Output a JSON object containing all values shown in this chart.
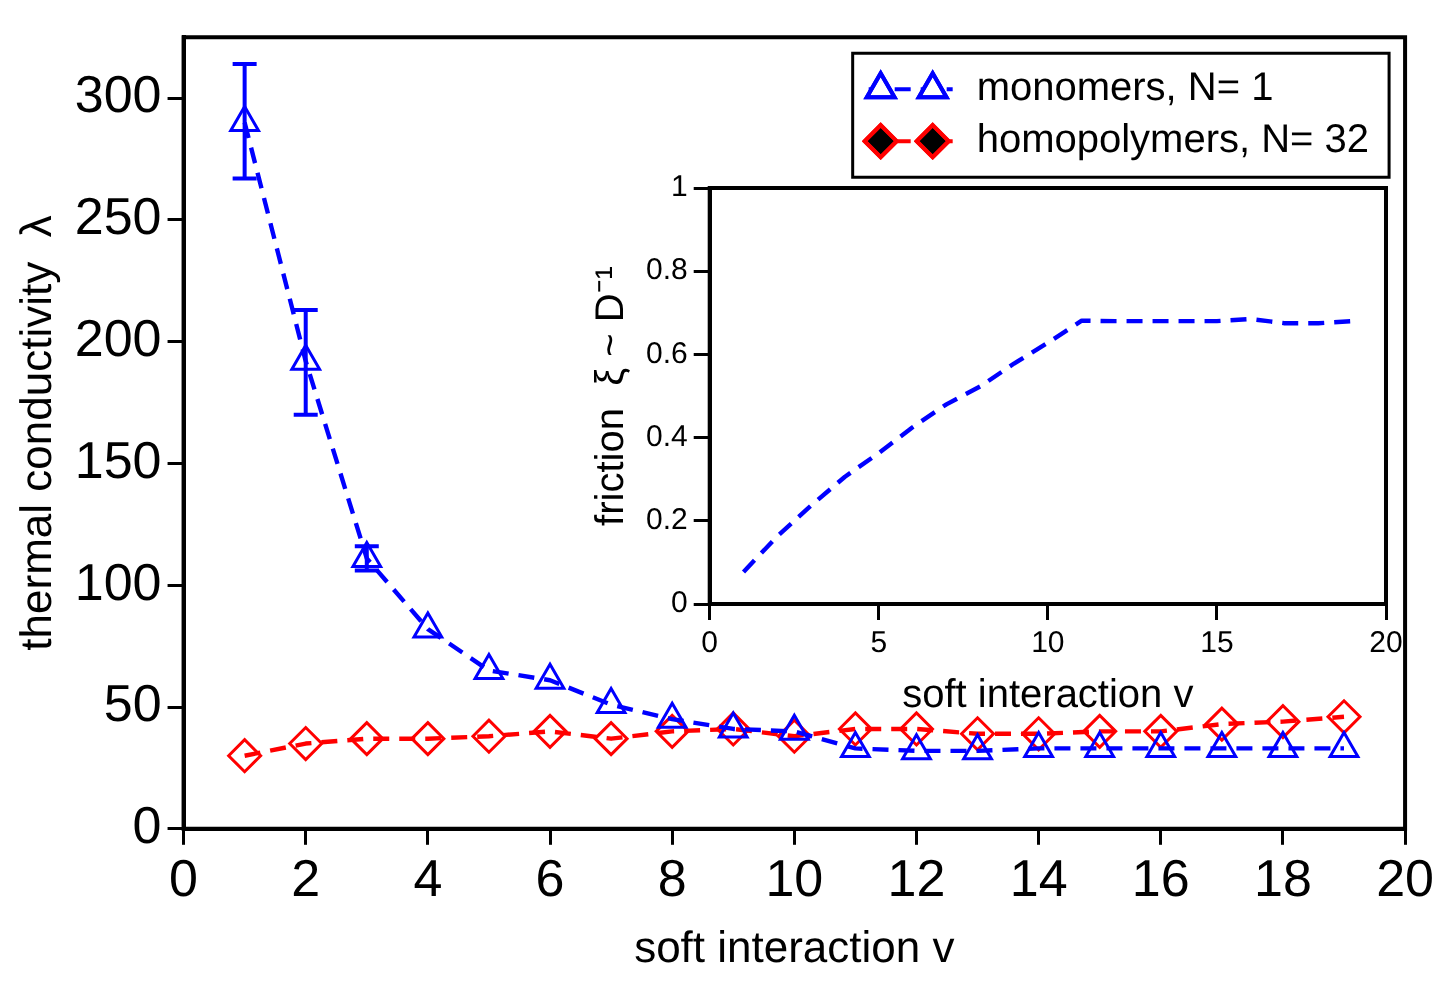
{
  "chart_data": [
    {
      "type": "line",
      "xlabel": "soft interaction v",
      "ylabel": "thermal conductivity  λ",
      "xlim": [
        0,
        20
      ],
      "ylim": [
        0,
        325
      ],
      "xticks": [
        0,
        2,
        4,
        6,
        8,
        10,
        12,
        14,
        16,
        18,
        20
      ],
      "yticks": [
        0,
        50,
        100,
        150,
        200,
        250,
        300
      ],
      "grid": false,
      "legend": "top right",
      "line_style": "dashed",
      "x": [
        1,
        2,
        3,
        4,
        5,
        6,
        7,
        8,
        9,
        10,
        11,
        12,
        13,
        14,
        15,
        16,
        17,
        18,
        19
      ],
      "series": [
        {
          "name": "monomers, N= 1",
          "color": "#0000ff",
          "marker": "triangle",
          "values": [
            290,
            192,
            111,
            82,
            65,
            61,
            51,
            45,
            41,
            40,
            33,
            32,
            32,
            33,
            33,
            33,
            33,
            33,
            33
          ],
          "errors": [
            [
              267,
              314
            ],
            [
              170,
              213
            ],
            [
              106,
              116
            ],
            null,
            null,
            null,
            null,
            null,
            null,
            null,
            null,
            null,
            null,
            null,
            null,
            null,
            null,
            null,
            null
          ]
        },
        {
          "name": "homopolymers, N= 32",
          "color": "#ff0000",
          "marker": "diamond",
          "values": [
            30,
            35,
            37,
            37,
            38,
            40,
            37,
            40,
            41,
            38,
            41,
            41,
            39,
            39,
            40,
            40,
            43,
            44,
            46
          ]
        }
      ]
    },
    {
      "type": "line",
      "xlabel": "soft interaction v",
      "ylabel": "friction  ξ ~ D⁻¹",
      "xlim": [
        0,
        20
      ],
      "ylim": [
        0,
        1
      ],
      "xticks": [
        0,
        5,
        10,
        15,
        20
      ],
      "yticks": [
        0,
        0.2,
        0.4,
        0.6,
        0.8,
        1
      ],
      "grid": false,
      "marker": "none",
      "line_style": "dashed",
      "x": [
        1,
        2,
        3,
        4,
        5,
        6,
        7,
        8,
        9,
        10,
        11,
        12,
        13,
        14,
        15,
        16,
        17,
        18,
        19
      ],
      "series": [
        {
          "color": "#0000ff",
          "values": [
            0.077,
            0.163,
            0.237,
            0.306,
            0.363,
            0.425,
            0.48,
            0.523,
            0.578,
            0.628,
            0.681,
            0.68,
            0.68,
            0.68,
            0.68,
            0.685,
            0.675,
            0.675,
            0.68
          ]
        }
      ]
    }
  ]
}
